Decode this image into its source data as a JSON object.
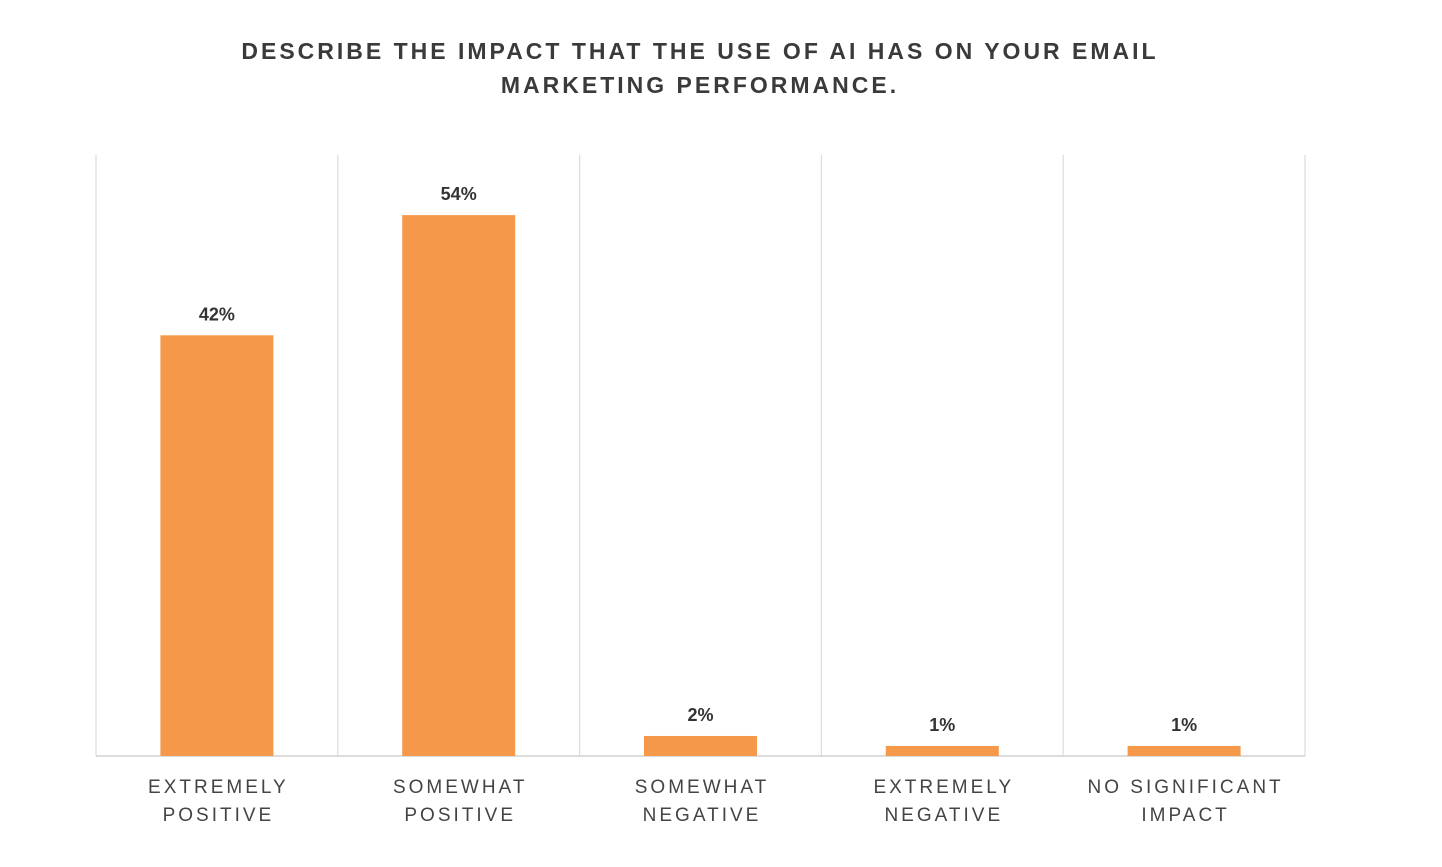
{
  "chart_data": {
    "type": "bar",
    "title_lines": [
      "DESCRIBE THE IMPACT THAT THE USE OF AI HAS ON YOUR EMAIL",
      "MARKETING PERFORMANCE."
    ],
    "categories": [
      [
        "EXTREMELY",
        "POSITIVE"
      ],
      [
        "SOMEWHAT",
        "POSITIVE"
      ],
      [
        "SOMEWHAT",
        "NEGATIVE"
      ],
      [
        "EXTREMELY",
        "NEGATIVE"
      ],
      [
        "NO SIGNIFICANT",
        "IMPACT"
      ]
    ],
    "values": [
      42,
      54,
      2,
      1,
      1
    ],
    "data_labels": [
      "42%",
      "54%",
      "2%",
      "1%",
      "1%"
    ],
    "ylim": [
      0,
      60
    ],
    "xlabel": "",
    "ylabel": "",
    "grid": "vertical category separators",
    "bar_color": "#F5984A"
  }
}
